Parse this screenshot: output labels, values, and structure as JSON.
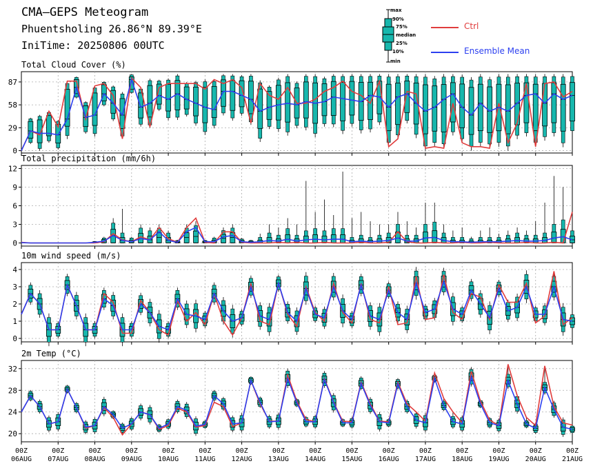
{
  "header": {
    "title": "CMA–GEPS Meteogram",
    "location": "Phuentsholing 26.86°N 89.39°E",
    "init_time": "IniTime: 20250806 00UTC"
  },
  "legend": {
    "box_labels": [
      "max",
      "90%",
      "75%",
      "median",
      "25%",
      "10%",
      "min"
    ],
    "ctrl_label": "Ctrl",
    "mean_label": "Ensemble Mean",
    "colors": {
      "ctrl": "#e03c3c",
      "mean": "#2b3ff0",
      "box": "#17b7ad",
      "box_line": "#000000",
      "grid": "#aaaaaa"
    }
  },
  "chart_data": [
    {
      "type": "box",
      "title": "Total Cloud Cover (%)",
      "x": [
        "2025-08-06 00Z",
        "2025-08-06 06Z",
        "2025-08-06 12Z",
        "2025-08-06 18Z",
        "2025-08-07 00Z",
        "2025-08-07 06Z",
        "2025-08-07 12Z",
        "2025-08-07 18Z",
        "2025-08-08 00Z",
        "2025-08-08 06Z",
        "2025-08-08 12Z",
        "2025-08-08 18Z",
        "2025-08-09 00Z",
        "2025-08-09 06Z",
        "2025-08-09 12Z",
        "2025-08-09 18Z",
        "2025-08-10 00Z",
        "2025-08-10 06Z",
        "2025-08-10 12Z",
        "2025-08-10 18Z",
        "2025-08-11 00Z",
        "2025-08-11 06Z",
        "2025-08-11 12Z",
        "2025-08-11 18Z",
        "2025-08-12 00Z",
        "2025-08-12 06Z",
        "2025-08-12 12Z",
        "2025-08-12 18Z",
        "2025-08-13 00Z",
        "2025-08-13 06Z",
        "2025-08-13 12Z",
        "2025-08-13 18Z",
        "2025-08-14 00Z",
        "2025-08-14 06Z",
        "2025-08-14 12Z",
        "2025-08-14 18Z",
        "2025-08-15 00Z",
        "2025-08-15 06Z",
        "2025-08-15 12Z",
        "2025-08-15 18Z",
        "2025-08-16 00Z",
        "2025-08-16 06Z",
        "2025-08-16 12Z",
        "2025-08-16 18Z",
        "2025-08-17 00Z",
        "2025-08-17 06Z",
        "2025-08-17 12Z",
        "2025-08-17 18Z",
        "2025-08-18 00Z",
        "2025-08-18 06Z",
        "2025-08-18 12Z",
        "2025-08-18 18Z",
        "2025-08-19 00Z",
        "2025-08-19 06Z",
        "2025-08-19 12Z",
        "2025-08-19 18Z",
        "2025-08-20 00Z",
        "2025-08-20 06Z",
        "2025-08-20 12Z",
        "2025-08-20 18Z",
        "2025-08-21 00Z"
      ],
      "x_tick_labels": [
        "00Z\n06AUG",
        "00Z\n07AUG",
        "00Z\n08AUG",
        "00Z\n09AUG",
        "00Z\n10AUG",
        "00Z\n11AUG",
        "00Z\n12AUG",
        "00Z\n13AUG",
        "00Z\n14AUG",
        "00Z\n15AUG",
        "00Z\n16AUG",
        "00Z\n17AUG",
        "00Z\n18AUG",
        "00Z\n19AUG",
        "00Z\n20AUG",
        "00Z\n21AUG"
      ],
      "y_ticks": [
        0,
        29,
        58,
        87
      ],
      "ylim": [
        -3,
        100
      ],
      "ctrl": [
        0,
        25,
        20,
        50,
        30,
        88,
        88,
        40,
        82,
        85,
        70,
        15,
        92,
        80,
        30,
        80,
        85,
        85,
        85,
        85,
        78,
        90,
        85,
        90,
        80,
        35,
        85,
        70,
        65,
        80,
        60,
        60,
        65,
        75,
        80,
        88,
        75,
        70,
        60,
        88,
        5,
        15,
        75,
        72,
        3,
        5,
        3,
        60,
        10,
        5,
        5,
        3,
        60,
        10,
        35,
        85,
        5,
        85,
        87,
        68,
        75
      ],
      "mean": [
        0,
        25,
        22,
        22,
        20,
        40,
        80,
        42,
        45,
        72,
        60,
        45,
        90,
        55,
        60,
        70,
        65,
        72,
        65,
        60,
        55,
        52,
        75,
        75,
        70,
        65,
        50,
        55,
        58,
        60,
        58,
        62,
        60,
        62,
        68,
        66,
        64,
        62,
        70,
        68,
        55,
        68,
        72,
        60,
        50,
        55,
        65,
        72,
        55,
        45,
        60,
        50,
        55,
        50,
        60,
        70,
        72,
        60,
        72,
        65,
        70
      ],
      "box_spread_max": 50,
      "max_cap": 97
    },
    {
      "type": "box",
      "title": "Total precipitation (mm/6h)",
      "x_ref": "same x as panel 1",
      "y_ticks": [
        0,
        3,
        6,
        9,
        12
      ],
      "ylim": [
        -0.5,
        12.5
      ],
      "ctrl": [
        0.1,
        0,
        0,
        0,
        0,
        0,
        0,
        0,
        0,
        0.2,
        1.5,
        0.5,
        0.2,
        1.0,
        0.5,
        2.5,
        0.7,
        0.1,
        2.5,
        4.0,
        0.1,
        0,
        1.8,
        1.8,
        0.1,
        0,
        0,
        0,
        0.1,
        0,
        0.1,
        0,
        0,
        0.1,
        0,
        0,
        0,
        0.1,
        0,
        0,
        0.1,
        1.8,
        0.2,
        0,
        0,
        0.1,
        0,
        0,
        0.1,
        0,
        0,
        0.1,
        0,
        0,
        0,
        0.1,
        0,
        0,
        0.1,
        0,
        5.0
      ],
      "mean": [
        0.05,
        0,
        0,
        0,
        0,
        0,
        0,
        0,
        0.1,
        0.3,
        1.2,
        0.4,
        0.2,
        0.7,
        0.5,
        1.8,
        0.4,
        0.1,
        1.8,
        2.5,
        0.2,
        0.2,
        1.0,
        1.2,
        0.2,
        0.1,
        0.2,
        0.4,
        0.3,
        0.6,
        0.3,
        0.5,
        0.6,
        0.5,
        0.6,
        0.6,
        0.2,
        0.3,
        0.2,
        0.3,
        0.4,
        0.8,
        0.3,
        0.3,
        0.8,
        0.9,
        0.4,
        0.2,
        0.2,
        0.1,
        0.2,
        0.2,
        0.2,
        0.3,
        0.4,
        0.3,
        0.3,
        0.4,
        0.8,
        1.0,
        0.5
      ],
      "max_values": [
        0.1,
        0,
        0,
        0,
        0,
        0,
        0,
        0,
        0.3,
        1.0,
        4.0,
        5.5,
        1.0,
        3.0,
        2.5,
        3.0,
        2.0,
        0.5,
        3.0,
        3.5,
        0.5,
        1.0,
        2.5,
        3.0,
        0.8,
        0.5,
        1.5,
        3.0,
        2.5,
        4.0,
        3.0,
        10.0,
        5.0,
        7.0,
        4.5,
        11.5,
        4.0,
        5.0,
        3.5,
        3.0,
        3.0,
        5.0,
        3.5,
        2.5,
        6.5,
        6.5,
        3.0,
        2.0,
        2.5,
        1.0,
        2.0,
        2.5,
        1.5,
        2.0,
        2.5,
        2.0,
        3.5,
        6.5,
        10.8,
        9.0,
        9.2
      ]
    },
    {
      "type": "box",
      "title": "10m wind speed (m/s)",
      "x_ref": "same x as panel 1",
      "y_ticks": [
        0,
        1,
        2,
        3,
        4
      ],
      "ylim": [
        -0.2,
        4.4
      ],
      "ctrl": [
        1.4,
        2.6,
        2.0,
        0.5,
        0.5,
        3.1,
        1.9,
        0.5,
        0.5,
        2.6,
        2.1,
        0.3,
        0.3,
        2.2,
        1.5,
        0.5,
        0.2,
        2.2,
        1.0,
        1.5,
        0.8,
        2.6,
        1.0,
        0.2,
        1.2,
        3.2,
        1.0,
        0.8,
        3.2,
        1.4,
        0.7,
        3.0,
        1.5,
        1.0,
        3.2,
        1.5,
        0.9,
        3.2,
        1.1,
        0.9,
        3.0,
        0.8,
        0.9,
        3.6,
        1.1,
        1.2,
        3.7,
        1.5,
        1.1,
        2.6,
        2.4,
        1.1,
        3.1,
        2.1,
        2.1,
        3.2,
        0.9,
        1.3,
        3.9,
        0.8,
        1.2
      ],
      "mean": [
        1.4,
        2.6,
        2.0,
        0.5,
        0.5,
        3.1,
        1.9,
        0.5,
        0.5,
        2.3,
        1.9,
        0.5,
        0.5,
        2.0,
        1.5,
        0.7,
        0.5,
        2.3,
        1.4,
        1.3,
        1.1,
        2.6,
        1.6,
        1.0,
        1.2,
        3.0,
        1.3,
        1.1,
        3.2,
        1.5,
        1.0,
        2.9,
        1.4,
        1.2,
        3.0,
        1.6,
        1.1,
        3.1,
        1.3,
        1.1,
        2.8,
        1.5,
        1.1,
        3.2,
        1.5,
        1.7,
        3.3,
        1.7,
        1.4,
        2.8,
        2.0,
        1.2,
        2.9,
        1.6,
        1.8,
        3.0,
        1.4,
        1.4,
        3.0,
        1.1,
        1.0
      ]
    },
    {
      "type": "box",
      "title": "2m Temp (°C)",
      "x_ref": "same x as panel 1",
      "y_ticks": [
        20,
        24,
        28,
        32
      ],
      "ylim": [
        18.5,
        33.5
      ],
      "ctrl": [
        24.0,
        27.0,
        25.0,
        21.8,
        22.2,
        28.2,
        24.8,
        21.0,
        21.5,
        24.8,
        23.0,
        19.8,
        21.8,
        24.0,
        23.5,
        20.8,
        21.5,
        24.7,
        24.0,
        21.2,
        21.5,
        25.8,
        25.0,
        21.3,
        22.0,
        29.8,
        25.5,
        22.3,
        22.3,
        30.8,
        26.0,
        22.6,
        22.2,
        30.2,
        25.8,
        22.3,
        22.2,
        29.5,
        25.5,
        22.3,
        22.2,
        29.5,
        25.5,
        24.0,
        22.3,
        31.2,
        26.5,
        24.0,
        22.0,
        31.5,
        26.0,
        22.5,
        21.5,
        32.8,
        27.0,
        23.0,
        21.5,
        32.5,
        25.0,
        22.0,
        21.6
      ],
      "mean": [
        24.0,
        27.0,
        25.0,
        21.8,
        22.2,
        28.2,
        24.8,
        21.2,
        21.5,
        25.0,
        23.5,
        21.0,
        21.8,
        24.0,
        23.5,
        21.0,
        21.8,
        25.0,
        24.3,
        21.4,
        21.7,
        27.0,
        25.5,
        21.8,
        22.0,
        29.8,
        25.8,
        22.2,
        22.3,
        30.2,
        25.7,
        22.2,
        22.2,
        30.0,
        25.7,
        22.0,
        22.0,
        29.3,
        25.2,
        22.2,
        22.0,
        29.2,
        25.0,
        22.5,
        22.0,
        30.2,
        25.2,
        22.2,
        21.8,
        30.5,
        25.5,
        22.0,
        21.5,
        29.8,
        25.5,
        21.8,
        21.0,
        28.5,
        24.5,
        21.2,
        20.8
      ]
    }
  ]
}
